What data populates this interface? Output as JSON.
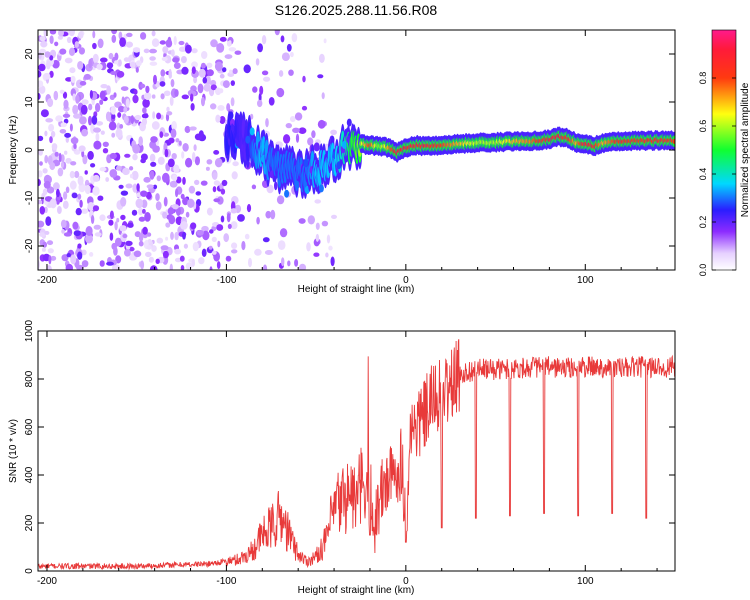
{
  "figure_title": "S126.2025.288.11.56.R08",
  "colors": {
    "snr_line": "#e83a3a",
    "frame": "#000000",
    "background": "#ffffff"
  },
  "chart_data": [
    {
      "type": "heatmap",
      "title": "S126.2025.288.11.56.R08",
      "xlabel": "Height of straight line (km)",
      "ylabel": "Frequency (Hz)",
      "xlim": [
        -205,
        150
      ],
      "ylim": [
        -25,
        25
      ],
      "xticks": [
        -200,
        -100,
        0,
        100
      ],
      "xtick_labels": [
        "-200",
        "-100",
        "0",
        "100"
      ],
      "yticks": [
        -20,
        -10,
        0,
        10,
        20
      ],
      "ytick_labels": [
        "-20",
        "-10",
        "0",
        "10",
        "20"
      ],
      "colorbar": {
        "label": "Normalized spectral amplitude",
        "range": [
          0,
          1
        ],
        "ticks": [
          0.0,
          0.2,
          0.4,
          0.6,
          0.8
        ],
        "tick_labels": [
          "0.0",
          "0.2",
          "0.4",
          "0.6",
          "0.8"
        ],
        "colormap": "rainbow (white → violet → blue → cyan → green → yellow → red → magenta)"
      },
      "signal_trace": {
        "x": [
          -100,
          -95,
          -90,
          -85,
          -80,
          -75,
          -70,
          -65,
          -60,
          -55,
          -50,
          -45,
          -40,
          -35,
          -30,
          -25,
          -20,
          -15,
          -10,
          -5,
          0,
          5,
          10,
          20,
          30,
          40,
          50,
          60,
          70,
          80,
          85,
          90,
          95,
          100,
          105,
          110,
          120,
          130,
          140,
          150
        ],
        "y": [
          3.5,
          3.0,
          2.0,
          1.0,
          -1.0,
          -2.5,
          -4.0,
          -4.5,
          -5.0,
          -4.8,
          -4.2,
          -3.0,
          -1.5,
          0.5,
          1.5,
          1.2,
          1.0,
          0.8,
          0.5,
          -0.5,
          0.5,
          1.0,
          0.8,
          1.0,
          1.3,
          1.5,
          1.6,
          1.8,
          1.9,
          2.2,
          2.8,
          2.5,
          1.5,
          1.2,
          0.8,
          1.5,
          1.8,
          1.9,
          2.0,
          2.0
        ],
        "amplitude": [
          0.25,
          0.25,
          0.2,
          0.3,
          0.35,
          0.3,
          0.3,
          0.3,
          0.3,
          0.3,
          0.35,
          0.35,
          0.35,
          0.4,
          0.5,
          0.6,
          0.8,
          0.55,
          0.7,
          0.9,
          0.9,
          0.85,
          0.9,
          0.8,
          0.7,
          0.6,
          0.6,
          0.7,
          0.75,
          0.9,
          0.9,
          0.85,
          0.7,
          0.9,
          0.85,
          0.7,
          0.85,
          0.8,
          0.85,
          0.8
        ]
      }
    },
    {
      "type": "line",
      "title": "",
      "xlabel": "Height of straight line (km)",
      "ylabel": "SNR (10 * v/v)",
      "xlim": [
        -205,
        150
      ],
      "ylim": [
        0,
        1000
      ],
      "xticks": [
        -200,
        -100,
        0,
        100
      ],
      "xtick_labels": [
        "-200",
        "-100",
        "0",
        "100"
      ],
      "yticks": [
        0,
        200,
        400,
        600,
        800,
        1000
      ],
      "ytick_labels": [
        "0",
        "200",
        "400",
        "600",
        "800",
        "1000"
      ],
      "series": [
        {
          "name": "SNR",
          "x": [
            -205,
            -190,
            -170,
            -150,
            -130,
            -110,
            -100,
            -95,
            -90,
            -85,
            -80,
            -75,
            -70,
            -65,
            -60,
            -55,
            -50,
            -45,
            -40,
            -35,
            -30,
            -28,
            -25,
            -22,
            -20,
            -18,
            -15,
            -12,
            -10,
            -8,
            -5,
            -2,
            0,
            2,
            5,
            8,
            10,
            15,
            20,
            25,
            30,
            40,
            50,
            60,
            70,
            80,
            90,
            100,
            110,
            120,
            130,
            140,
            150
          ],
          "y": [
            20,
            20,
            20,
            20,
            25,
            30,
            40,
            45,
            60,
            90,
            150,
            180,
            230,
            150,
            70,
            40,
            60,
            120,
            250,
            300,
            330,
            280,
            360,
            290,
            320,
            200,
            280,
            350,
            400,
            370,
            410,
            480,
            160,
            560,
            610,
            620,
            640,
            710,
            740,
            770,
            820,
            840,
            840,
            845,
            850,
            850,
            845,
            850,
            850,
            845,
            850,
            850,
            850
          ]
        }
      ],
      "dips": {
        "x": [
          -20,
          0,
          20,
          39,
          58,
          77,
          96,
          115,
          134
        ],
        "y": [
          150,
          120,
          180,
          220,
          230,
          240,
          230,
          240,
          220
        ]
      }
    }
  ]
}
